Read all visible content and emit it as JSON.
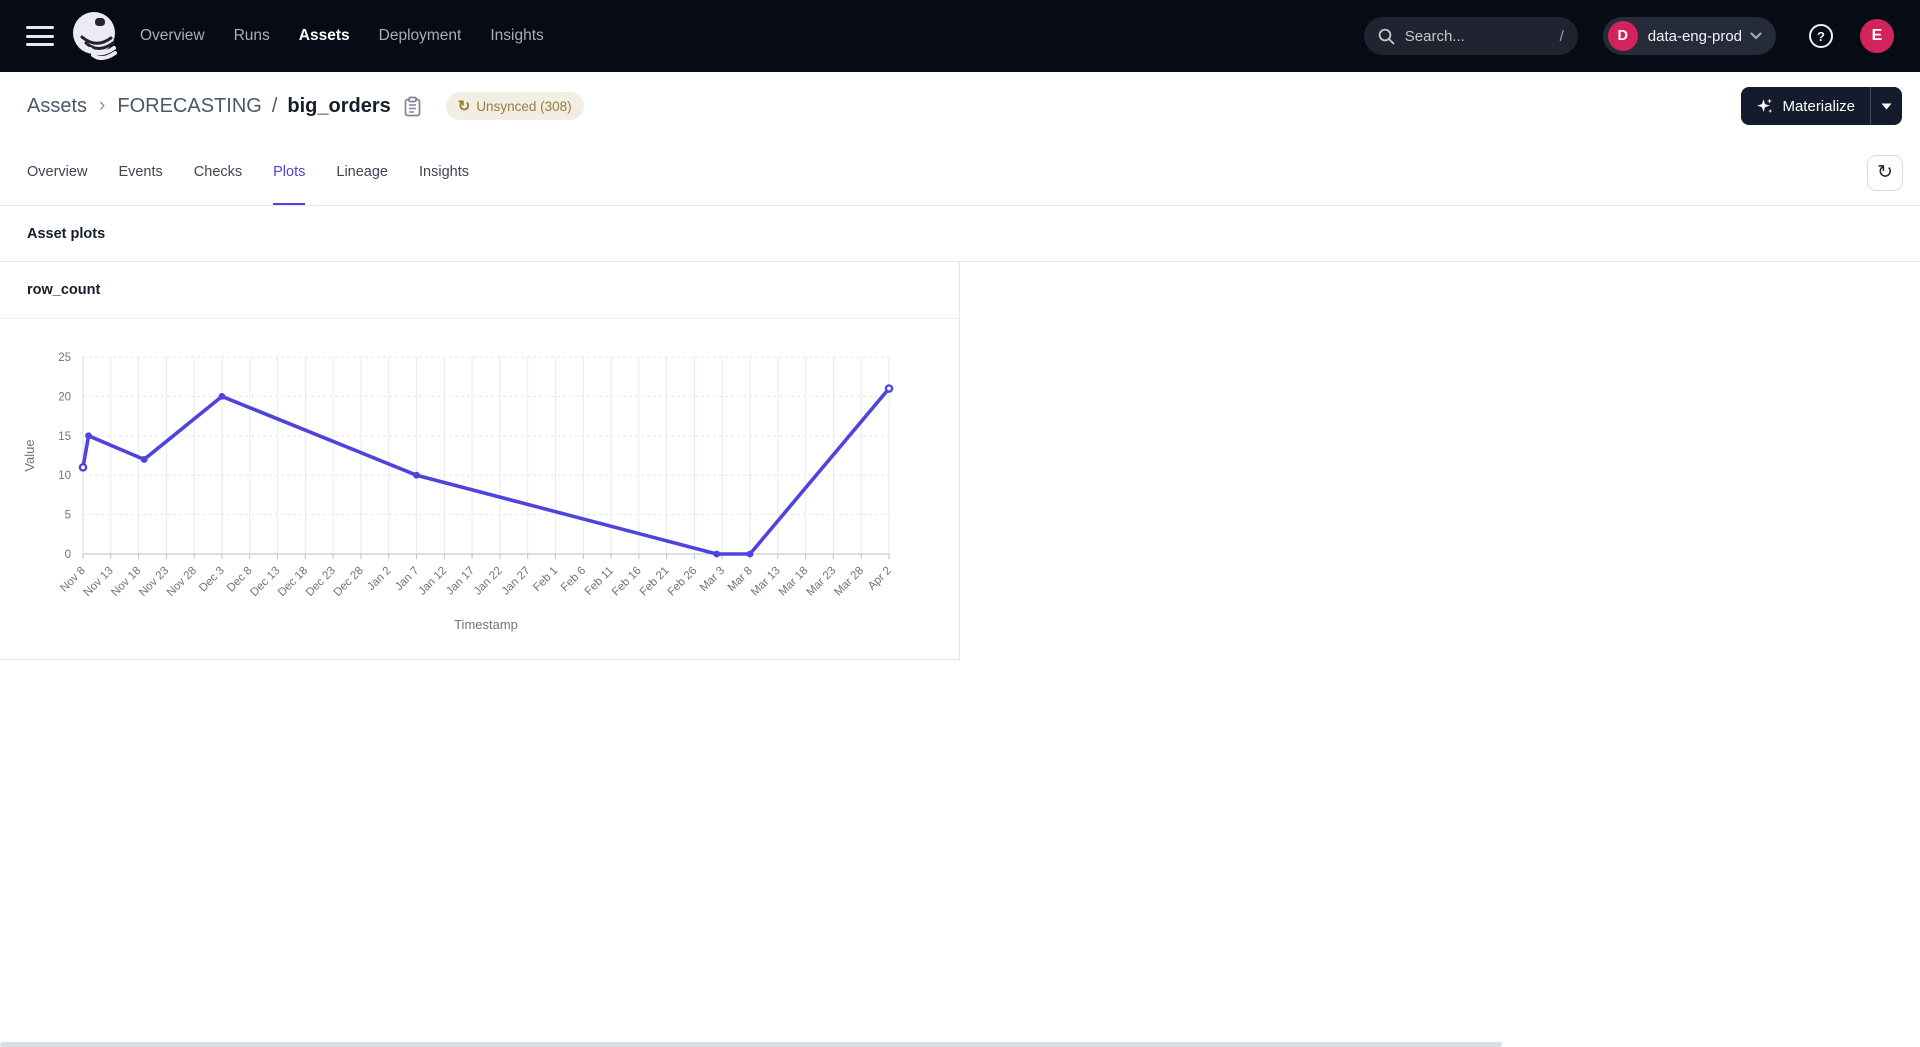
{
  "topnav": {
    "items": [
      {
        "label": "Overview",
        "active": false
      },
      {
        "label": "Runs",
        "active": false
      },
      {
        "label": "Assets",
        "active": true
      },
      {
        "label": "Deployment",
        "active": false
      },
      {
        "label": "Insights",
        "active": false
      }
    ],
    "search": {
      "placeholder": "Search...",
      "shortcut": "/"
    },
    "workspace": {
      "initial": "D",
      "label": "data-eng-prod"
    },
    "user_initial": "E"
  },
  "breadcrumb": {
    "root": "Assets",
    "separator": "›",
    "group": "FORECASTING",
    "slash": "/",
    "asset": "big_orders"
  },
  "status_badge": {
    "icon": "↻",
    "label": "Unsynced (308)"
  },
  "toolbar": {
    "materialize_label": "Materialize"
  },
  "tabs": [
    {
      "label": "Overview",
      "active": false
    },
    {
      "label": "Events",
      "active": false
    },
    {
      "label": "Checks",
      "active": false
    },
    {
      "label": "Plots",
      "active": true
    },
    {
      "label": "Lineage",
      "active": false
    },
    {
      "label": "Insights",
      "active": false
    }
  ],
  "section": {
    "title": "Asset plots"
  },
  "plot_card": {
    "title": "row_count"
  },
  "colors": {
    "accent": "#4f43dd",
    "nav_background": "#070b15",
    "avatar": "#d2235a",
    "badge_background": "#f3eee3",
    "badge_text": "#9a7b3d"
  },
  "chart_data": {
    "type": "line",
    "title": "row_count",
    "xlabel": "Timestamp",
    "ylabel": "Value",
    "ylim": [
      0,
      25
    ],
    "yticks": [
      0,
      5,
      10,
      15,
      20,
      25
    ],
    "grid": true,
    "legend": false,
    "line_color": "#4f43dd",
    "tick_interval_days": 5,
    "x_tick_labels": [
      "Nov 8",
      "Nov 13",
      "Nov 18",
      "Nov 23",
      "Nov 28",
      "Dec 3",
      "Dec 8",
      "Dec 13",
      "Dec 18",
      "Dec 23",
      "Dec 28",
      "Jan 2",
      "Jan 7",
      "Jan 12",
      "Jan 17",
      "Jan 22",
      "Jan 27",
      "Feb 1",
      "Feb 6",
      "Feb 11",
      "Feb 16",
      "Feb 21",
      "Feb 26",
      "Mar 3",
      "Mar 8",
      "Mar 13",
      "Mar 18",
      "Mar 23",
      "Mar 28",
      "Apr 2"
    ],
    "series": [
      {
        "name": "row_count",
        "x": [
          "Nov 8",
          "Nov 9",
          "Nov 19",
          "Dec 3",
          "Jan 7",
          "Mar 2",
          "Mar 8",
          "Apr 2"
        ],
        "x_days": [
          0,
          1,
          11,
          25,
          60,
          114,
          120,
          145
        ],
        "values": [
          11,
          15,
          12,
          20,
          10,
          0,
          0,
          21
        ]
      }
    ]
  }
}
